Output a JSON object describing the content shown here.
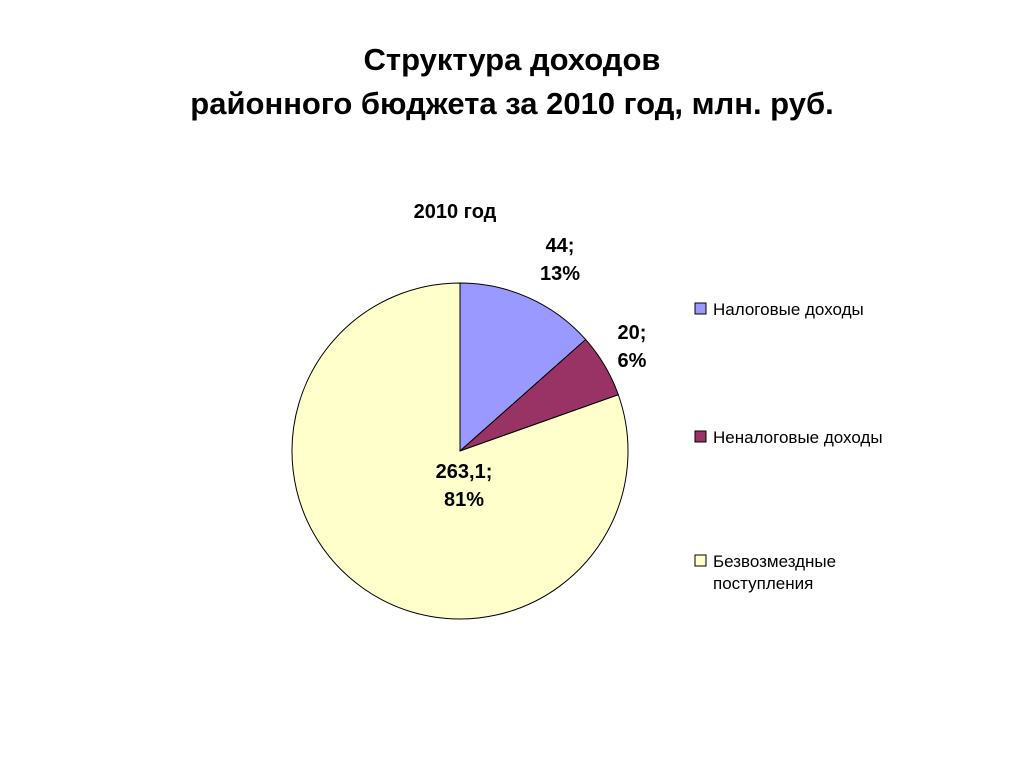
{
  "slide": {
    "title_line1": "Структура доходов",
    "title_line2": "районного бюджета за 2010 год, млн. руб."
  },
  "chart_data": {
    "type": "pie",
    "title": "2010 год",
    "unit": "млн. руб.",
    "start_angle_deg": 0,
    "direction": "clockwise",
    "legend_position": "right",
    "slices": [
      {
        "name": "Налоговые доходы",
        "value": 44,
        "value_label": "44;",
        "percent_label": "13%",
        "color": "#9999ff",
        "legend_lines": [
          "Налоговые доходы"
        ]
      },
      {
        "name": "Неналоговые доходы",
        "value": 20,
        "value_label": "20;",
        "percent_label": "6%",
        "color": "#993366",
        "legend_lines": [
          "Неналоговые доходы"
        ]
      },
      {
        "name": "Безвозмездные поступления",
        "value": 263.1,
        "value_label": "263,1;",
        "percent_label": "81%",
        "color": "#ffffcc",
        "legend_lines": [
          "Безвозмездные",
          "поступления"
        ]
      }
    ]
  }
}
